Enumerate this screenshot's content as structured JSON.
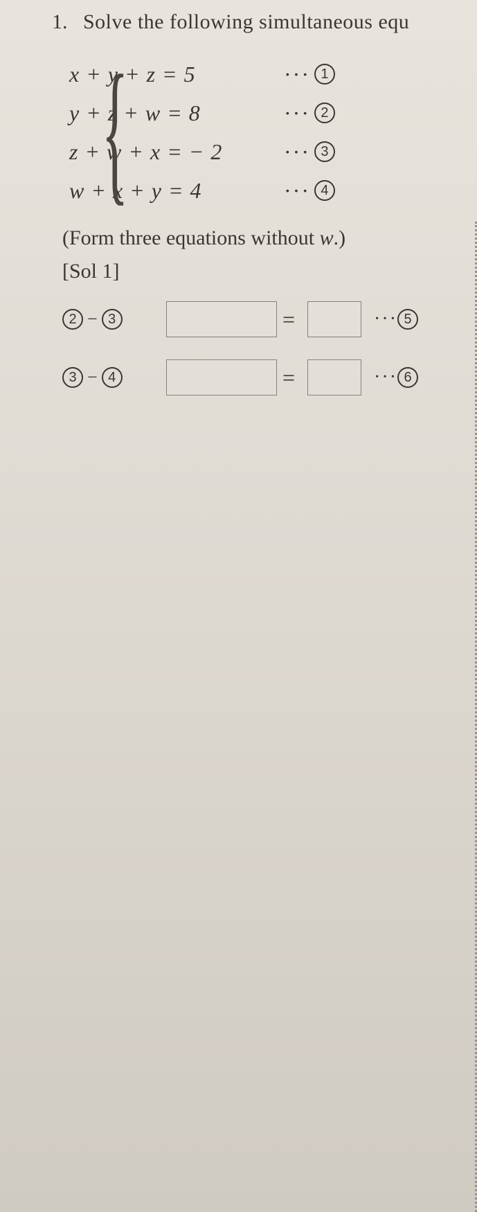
{
  "question": {
    "number": "1.",
    "text": "Solve the following simultaneous equ"
  },
  "equations": [
    {
      "lhs": "x + y + z = 5",
      "label": "1"
    },
    {
      "lhs": "y + z + w = 8",
      "label": "2"
    },
    {
      "lhs": "z + w + x = − 2",
      "label": "3"
    },
    {
      "lhs": "w + x + y = 4",
      "label": "4"
    }
  ],
  "hint": {
    "prefix": "(Form three equations without ",
    "var": "w",
    "suffix": ".)"
  },
  "solLabel": "[Sol 1]",
  "solRows": [
    {
      "a": "2",
      "b": "3",
      "result": "5"
    },
    {
      "a": "3",
      "b": "4",
      "result": "6"
    }
  ],
  "glyphs": {
    "dots": "···",
    "minus": "−",
    "equals": "="
  }
}
